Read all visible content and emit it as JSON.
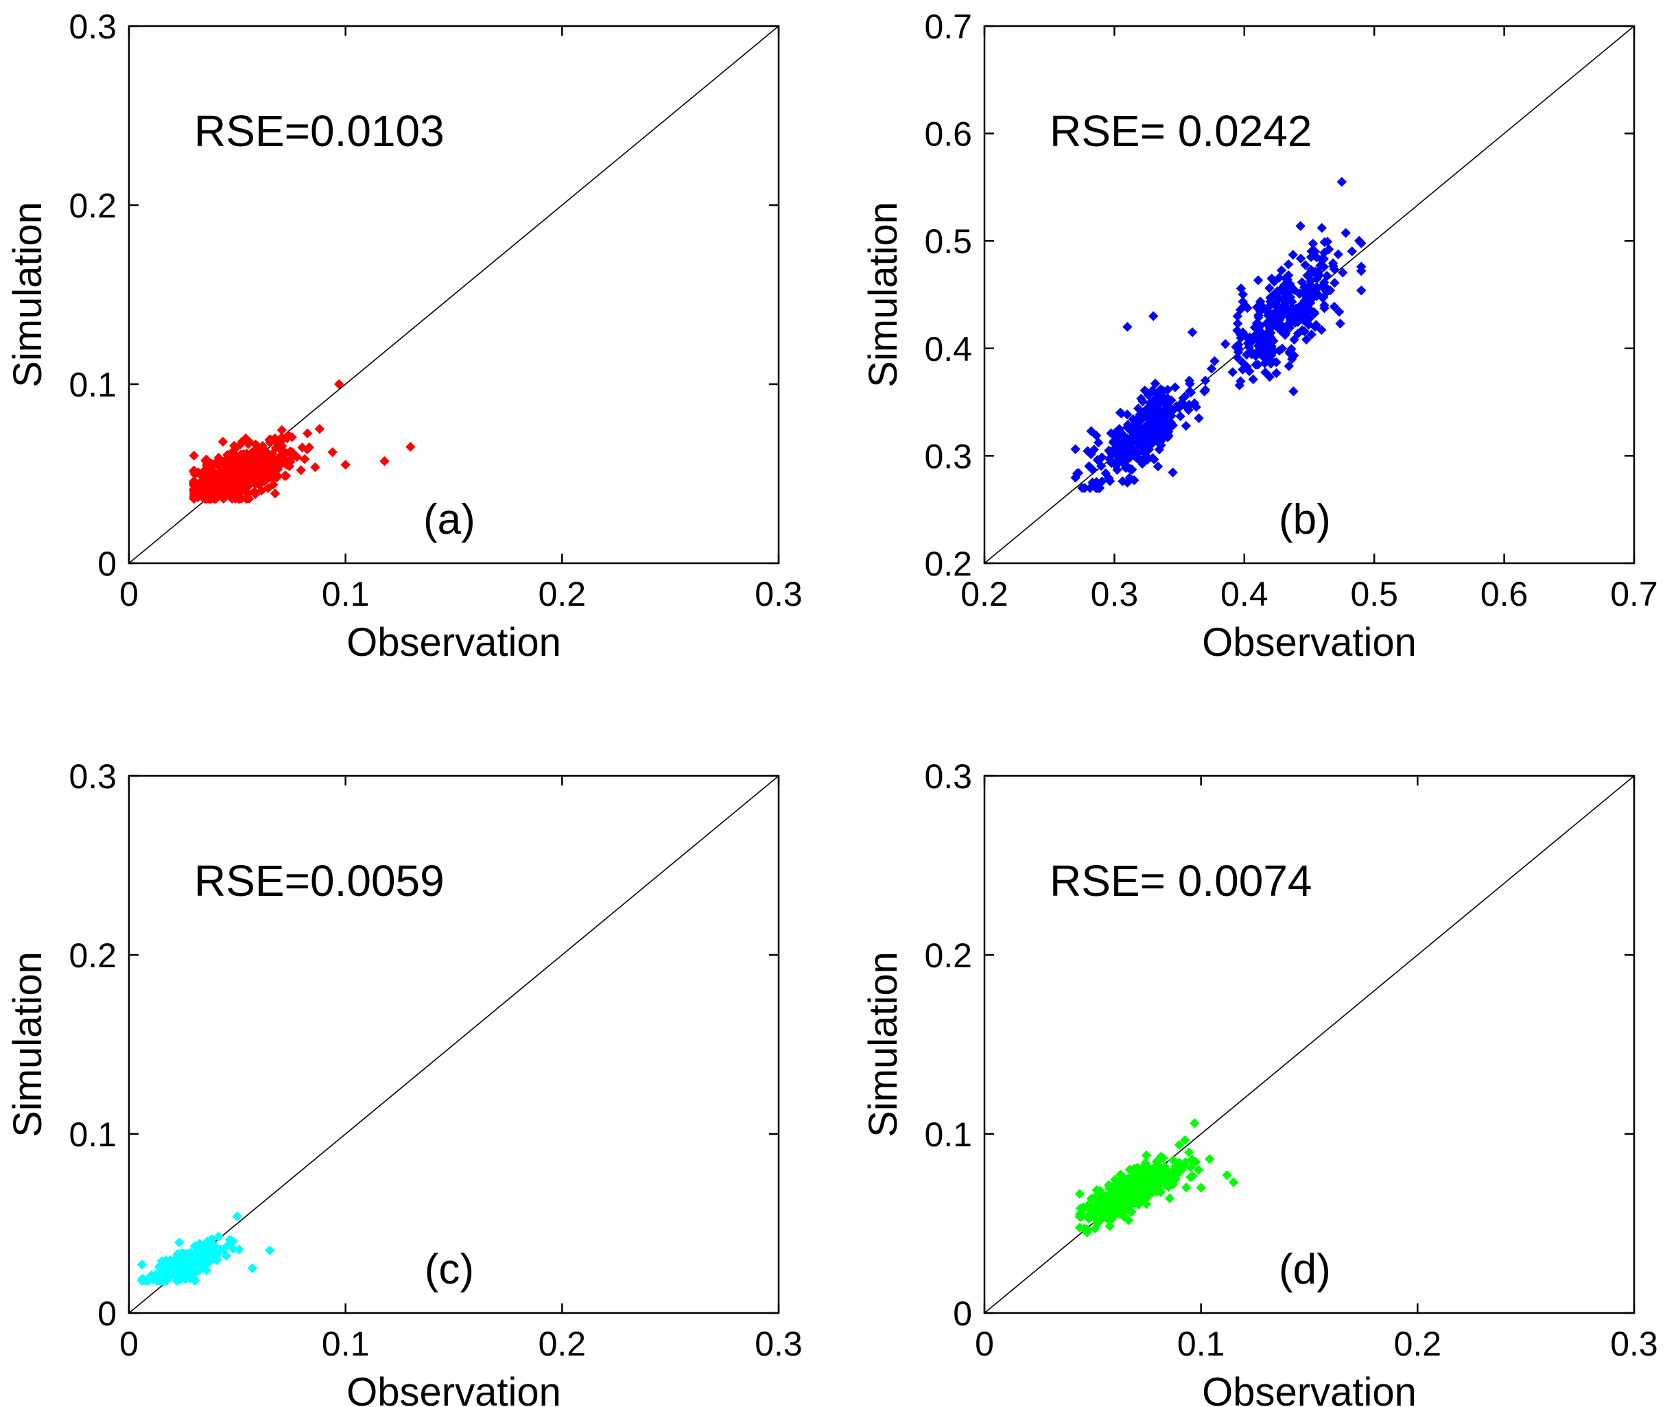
{
  "chart_data": [
    {
      "type": "scatter",
      "panel_label": "(a)",
      "annotation": "RSE=0.0103",
      "xlabel": "Observation",
      "ylabel": "Simulation",
      "xlim": [
        0,
        0.3
      ],
      "ylim": [
        0,
        0.3
      ],
      "xticks": [
        "0",
        "0.1",
        "0.2",
        "0.3"
      ],
      "yticks": [
        "0",
        "0.1",
        "0.2",
        "0.3"
      ],
      "color": "#ff0000",
      "reference_line": "y=x",
      "cluster": {
        "x_mean": 0.05,
        "x_sd": 0.012,
        "x_min": 0.03,
        "x_max": 0.13,
        "slope": 0.45,
        "noise": 0.007,
        "y_min": 0.036,
        "y_max": 0.1,
        "n": 520
      },
      "points": [
        [
          0.097,
          0.1
        ],
        [
          0.13,
          0.065
        ],
        [
          0.118,
          0.057
        ],
        [
          0.1,
          0.055
        ],
        [
          0.088,
          0.075
        ],
        [
          0.094,
          0.062
        ]
      ]
    },
    {
      "type": "scatter",
      "panel_label": "(b)",
      "annotation": "RSE= 0.0242",
      "xlabel": "Observation",
      "ylabel": "Simulation",
      "xlim": [
        0.2,
        0.7
      ],
      "ylim": [
        0.2,
        0.7
      ],
      "xticks": [
        "0.2",
        "0.3",
        "0.4",
        "0.5",
        "0.6",
        "0.7"
      ],
      "yticks": [
        "0.2",
        "0.3",
        "0.4",
        "0.5",
        "0.6",
        "0.7"
      ],
      "color": "#0000ff",
      "reference_line": "y=x",
      "clusters": [
        {
          "x_mean": 0.32,
          "x_sd": 0.02,
          "x_min": 0.27,
          "x_max": 0.37,
          "slope": 0.85,
          "noise": 0.016,
          "y_min": 0.27,
          "y_max": 0.37,
          "n": 300
        },
        {
          "x_mean": 0.43,
          "x_sd": 0.022,
          "x_min": 0.37,
          "x_max": 0.49,
          "slope": 0.9,
          "noise": 0.022,
          "y_min": 0.36,
          "y_max": 0.53,
          "n": 320
        }
      ],
      "points": [
        [
          0.475,
          0.555
        ],
        [
          0.36,
          0.415
        ],
        [
          0.33,
          0.43
        ],
        [
          0.31,
          0.42
        ],
        [
          0.365,
          0.335
        ],
        [
          0.31,
          0.275
        ]
      ]
    },
    {
      "type": "scatter",
      "panel_label": "(c)",
      "annotation": "RSE=0.0059",
      "xlabel": "Observation",
      "ylabel": "Simulation",
      "xlim": [
        0,
        0.3
      ],
      "ylim": [
        0,
        0.3
      ],
      "xticks": [
        "0",
        "0.1",
        "0.2",
        "0.3"
      ],
      "yticks": [
        "0",
        "0.1",
        "0.2",
        "0.3"
      ],
      "color": "#00ffff",
      "reference_line": "y=x",
      "cluster": {
        "x_mean": 0.028,
        "x_sd": 0.009,
        "x_min": 0.006,
        "x_max": 0.067,
        "slope": 0.5,
        "noise": 0.004,
        "y_min": 0.018,
        "y_max": 0.054,
        "n": 260
      },
      "points": [
        [
          0.065,
          0.035
        ],
        [
          0.057,
          0.025
        ],
        [
          0.05,
          0.054
        ],
        [
          0.006,
          0.027
        ],
        [
          0.01,
          0.02
        ]
      ]
    },
    {
      "type": "scatter",
      "panel_label": "(d)",
      "annotation": "RSE= 0.0074",
      "xlabel": "Observation",
      "ylabel": "Simulation",
      "xlim": [
        0,
        0.3
      ],
      "ylim": [
        0,
        0.3
      ],
      "xticks": [
        "0",
        "0.1",
        "0.2",
        "0.3"
      ],
      "yticks": [
        "0",
        "0.1",
        "0.2",
        "0.3"
      ],
      "color": "#00ff00",
      "reference_line": "y=x",
      "cluster": {
        "x_mean": 0.068,
        "x_sd": 0.012,
        "x_min": 0.044,
        "x_max": 0.115,
        "slope": 0.6,
        "noise": 0.006,
        "y_min": 0.045,
        "y_max": 0.105,
        "n": 380
      },
      "points": [
        [
          0.097,
          0.106
        ],
        [
          0.115,
          0.073
        ],
        [
          0.112,
          0.077
        ],
        [
          0.1,
          0.07
        ],
        [
          0.104,
          0.086
        ]
      ]
    }
  ]
}
